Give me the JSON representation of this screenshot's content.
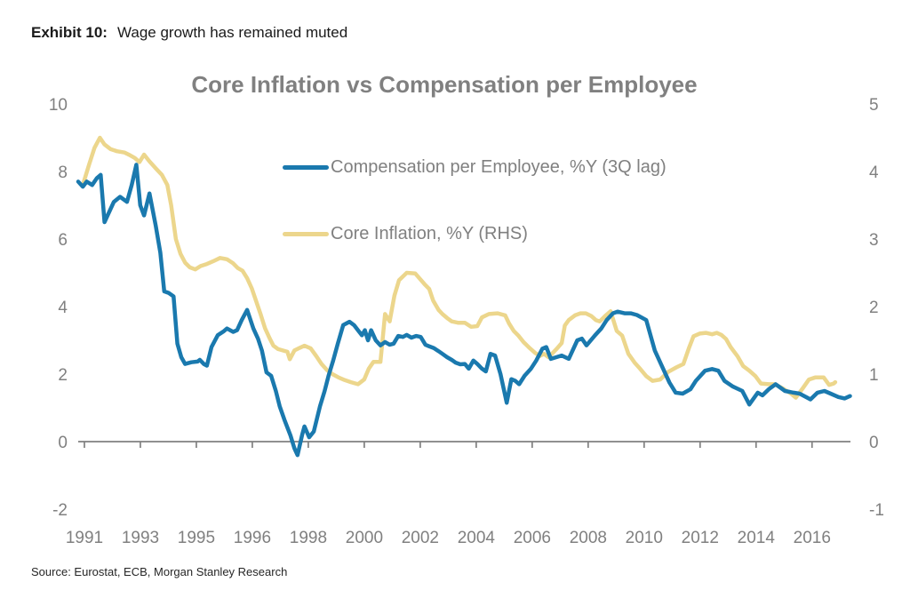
{
  "header": {
    "exhibit_label": "Exhibit 10:",
    "exhibit_title": "Wage growth has remained muted"
  },
  "footer": {
    "source": "Source: Eurostat, ECB, Morgan Stanley Research"
  },
  "chart_data": {
    "type": "line",
    "title": "Core Inflation vs Compensation per Employee",
    "grid": false,
    "legend_position": "inside-top",
    "colors": {
      "compensation": "#1a79ae",
      "core_inflation": "#ecd68c",
      "axis": "#808080",
      "title": "#808080"
    },
    "left_axis": {
      "ticks": [
        10,
        8,
        6,
        4,
        2,
        0,
        -2
      ],
      "range": [
        -2,
        10
      ]
    },
    "right_axis": {
      "ticks": [
        5,
        4,
        3,
        2,
        1,
        0,
        -1
      ],
      "range": [
        -1,
        5
      ]
    },
    "x_axis": {
      "labels": [
        "1991",
        "1993",
        "1995",
        "1996",
        "1998",
        "2000",
        "2002",
        "2004",
        "2006",
        "2008",
        "2010",
        "2012",
        "2014",
        "2016"
      ]
    },
    "series": [
      {
        "id": "compensation",
        "label": "Compensation per Employee, %Y (3Q lag)",
        "axis": "left",
        "color": "#1a79ae",
        "z": 2,
        "points": [
          [
            0.0,
            7.7
          ],
          [
            0.006,
            7.55
          ],
          [
            0.011,
            7.7
          ],
          [
            0.018,
            7.6
          ],
          [
            0.024,
            7.8
          ],
          [
            0.029,
            7.9
          ],
          [
            0.034,
            6.5
          ],
          [
            0.046,
            7.1
          ],
          [
            0.054,
            7.25
          ],
          [
            0.063,
            7.1
          ],
          [
            0.069,
            7.6
          ],
          [
            0.075,
            8.2
          ],
          [
            0.08,
            7.0
          ],
          [
            0.085,
            6.7
          ],
          [
            0.092,
            7.35
          ],
          [
            0.1,
            6.4
          ],
          [
            0.106,
            5.6
          ],
          [
            0.111,
            4.45
          ],
          [
            0.117,
            4.4
          ],
          [
            0.123,
            4.3
          ],
          [
            0.128,
            2.9
          ],
          [
            0.133,
            2.5
          ],
          [
            0.138,
            2.3
          ],
          [
            0.146,
            2.35
          ],
          [
            0.154,
            2.37
          ],
          [
            0.157,
            2.42
          ],
          [
            0.162,
            2.3
          ],
          [
            0.166,
            2.25
          ],
          [
            0.172,
            2.8
          ],
          [
            0.18,
            3.15
          ],
          [
            0.188,
            3.27
          ],
          [
            0.192,
            3.35
          ],
          [
            0.2,
            3.25
          ],
          [
            0.205,
            3.3
          ],
          [
            0.211,
            3.6
          ],
          [
            0.218,
            3.9
          ],
          [
            0.226,
            3.35
          ],
          [
            0.232,
            3.05
          ],
          [
            0.237,
            2.7
          ],
          [
            0.243,
            2.05
          ],
          [
            0.249,
            1.95
          ],
          [
            0.255,
            1.5
          ],
          [
            0.26,
            1.05
          ],
          [
            0.266,
            0.65
          ],
          [
            0.274,
            0.18
          ],
          [
            0.279,
            -0.2
          ],
          [
            0.283,
            -0.4
          ],
          [
            0.289,
            0.2
          ],
          [
            0.292,
            0.45
          ],
          [
            0.298,
            0.13
          ],
          [
            0.304,
            0.3
          ],
          [
            0.312,
            1.05
          ],
          [
            0.318,
            1.5
          ],
          [
            0.323,
            1.95
          ],
          [
            0.329,
            2.4
          ],
          [
            0.335,
            2.9
          ],
          [
            0.342,
            3.45
          ],
          [
            0.35,
            3.55
          ],
          [
            0.356,
            3.45
          ],
          [
            0.361,
            3.3
          ],
          [
            0.366,
            3.15
          ],
          [
            0.37,
            3.3
          ],
          [
            0.374,
            3.0
          ],
          [
            0.378,
            3.3
          ],
          [
            0.384,
            3.0
          ],
          [
            0.39,
            2.85
          ],
          [
            0.396,
            2.95
          ],
          [
            0.402,
            2.87
          ],
          [
            0.407,
            2.9
          ],
          [
            0.413,
            3.13
          ],
          [
            0.419,
            3.1
          ],
          [
            0.424,
            3.16
          ],
          [
            0.43,
            3.08
          ],
          [
            0.436,
            3.13
          ],
          [
            0.442,
            3.1
          ],
          [
            0.448,
            2.87
          ],
          [
            0.453,
            2.82
          ],
          [
            0.459,
            2.77
          ],
          [
            0.465,
            2.68
          ],
          [
            0.47,
            2.6
          ],
          [
            0.476,
            2.5
          ],
          [
            0.482,
            2.42
          ],
          [
            0.487,
            2.34
          ],
          [
            0.493,
            2.29
          ],
          [
            0.499,
            2.3
          ],
          [
            0.504,
            2.16
          ],
          [
            0.51,
            2.4
          ],
          [
            0.515,
            2.3
          ],
          [
            0.521,
            2.16
          ],
          [
            0.526,
            2.08
          ],
          [
            0.532,
            2.6
          ],
          [
            0.538,
            2.55
          ],
          [
            0.545,
            2.0
          ],
          [
            0.553,
            1.15
          ],
          [
            0.559,
            1.85
          ],
          [
            0.564,
            1.8
          ],
          [
            0.569,
            1.7
          ],
          [
            0.576,
            1.95
          ],
          [
            0.584,
            2.15
          ],
          [
            0.591,
            2.4
          ],
          [
            0.599,
            2.75
          ],
          [
            0.604,
            2.8
          ],
          [
            0.61,
            2.45
          ],
          [
            0.617,
            2.5
          ],
          [
            0.624,
            2.55
          ],
          [
            0.633,
            2.45
          ],
          [
            0.644,
            3.0
          ],
          [
            0.65,
            3.05
          ],
          [
            0.656,
            2.85
          ],
          [
            0.667,
            3.15
          ],
          [
            0.675,
            3.35
          ],
          [
            0.682,
            3.6
          ],
          [
            0.69,
            3.8
          ],
          [
            0.696,
            3.85
          ],
          [
            0.705,
            3.8
          ],
          [
            0.713,
            3.8
          ],
          [
            0.721,
            3.75
          ],
          [
            0.733,
            3.6
          ],
          [
            0.744,
            2.7
          ],
          [
            0.756,
            2.1
          ],
          [
            0.763,
            1.75
          ],
          [
            0.771,
            1.45
          ],
          [
            0.78,
            1.42
          ],
          [
            0.79,
            1.55
          ],
          [
            0.797,
            1.8
          ],
          [
            0.809,
            2.1
          ],
          [
            0.818,
            2.15
          ],
          [
            0.826,
            2.1
          ],
          [
            0.834,
            1.8
          ],
          [
            0.845,
            1.63
          ],
          [
            0.857,
            1.5
          ],
          [
            0.866,
            1.1
          ],
          [
            0.877,
            1.45
          ],
          [
            0.883,
            1.37
          ],
          [
            0.891,
            1.55
          ],
          [
            0.9,
            1.7
          ],
          [
            0.912,
            1.5
          ],
          [
            0.923,
            1.45
          ],
          [
            0.931,
            1.42
          ],
          [
            0.945,
            1.25
          ],
          [
            0.954,
            1.45
          ],
          [
            0.963,
            1.5
          ],
          [
            0.971,
            1.42
          ],
          [
            0.981,
            1.32
          ],
          [
            0.989,
            1.28
          ],
          [
            0.996,
            1.35
          ]
        ]
      },
      {
        "id": "core_inflation",
        "label": "Core Inflation, %Y (RHS)",
        "axis": "right",
        "color": "#ecd68c",
        "z": 1,
        "points": [
          [
            0.006,
            3.8
          ],
          [
            0.014,
            4.1
          ],
          [
            0.021,
            4.35
          ],
          [
            0.028,
            4.5
          ],
          [
            0.034,
            4.4
          ],
          [
            0.042,
            4.33
          ],
          [
            0.05,
            4.3
          ],
          [
            0.06,
            4.28
          ],
          [
            0.067,
            4.24
          ],
          [
            0.073,
            4.2
          ],
          [
            0.079,
            4.14
          ],
          [
            0.085,
            4.25
          ],
          [
            0.092,
            4.15
          ],
          [
            0.099,
            4.06
          ],
          [
            0.108,
            3.95
          ],
          [
            0.115,
            3.8
          ],
          [
            0.12,
            3.5
          ],
          [
            0.126,
            3.0
          ],
          [
            0.132,
            2.78
          ],
          [
            0.138,
            2.65
          ],
          [
            0.144,
            2.58
          ],
          [
            0.151,
            2.55
          ],
          [
            0.158,
            2.6
          ],
          [
            0.166,
            2.63
          ],
          [
            0.174,
            2.67
          ],
          [
            0.183,
            2.72
          ],
          [
            0.192,
            2.7
          ],
          [
            0.2,
            2.64
          ],
          [
            0.206,
            2.57
          ],
          [
            0.212,
            2.53
          ],
          [
            0.218,
            2.42
          ],
          [
            0.224,
            2.27
          ],
          [
            0.229,
            2.1
          ],
          [
            0.235,
            1.9
          ],
          [
            0.241,
            1.68
          ],
          [
            0.247,
            1.53
          ],
          [
            0.252,
            1.42
          ],
          [
            0.258,
            1.37
          ],
          [
            0.264,
            1.35
          ],
          [
            0.27,
            1.33
          ],
          [
            0.273,
            1.22
          ],
          [
            0.279,
            1.35
          ],
          [
            0.286,
            1.39
          ],
          [
            0.292,
            1.42
          ],
          [
            0.3,
            1.38
          ],
          [
            0.307,
            1.27
          ],
          [
            0.314,
            1.15
          ],
          [
            0.321,
            1.06
          ],
          [
            0.328,
            1.0
          ],
          [
            0.336,
            0.95
          ],
          [
            0.344,
            0.91
          ],
          [
            0.352,
            0.88
          ],
          [
            0.361,
            0.85
          ],
          [
            0.369,
            0.92
          ],
          [
            0.375,
            1.08
          ],
          [
            0.381,
            1.18
          ],
          [
            0.39,
            1.18
          ],
          [
            0.396,
            1.89
          ],
          [
            0.402,
            1.78
          ],
          [
            0.408,
            2.16
          ],
          [
            0.414,
            2.39
          ],
          [
            0.424,
            2.5
          ],
          [
            0.435,
            2.49
          ],
          [
            0.447,
            2.33
          ],
          [
            0.453,
            2.26
          ],
          [
            0.458,
            2.09
          ],
          [
            0.465,
            1.95
          ],
          [
            0.47,
            1.89
          ],
          [
            0.476,
            1.83
          ],
          [
            0.482,
            1.78
          ],
          [
            0.49,
            1.76
          ],
          [
            0.499,
            1.76
          ],
          [
            0.507,
            1.7
          ],
          [
            0.515,
            1.71
          ],
          [
            0.521,
            1.84
          ],
          [
            0.53,
            1.89
          ],
          [
            0.541,
            1.9
          ],
          [
            0.551,
            1.87
          ],
          [
            0.556,
            1.75
          ],
          [
            0.562,
            1.64
          ],
          [
            0.568,
            1.57
          ],
          [
            0.575,
            1.47
          ],
          [
            0.583,
            1.38
          ],
          [
            0.59,
            1.31
          ],
          [
            0.596,
            1.27
          ],
          [
            0.601,
            1.3
          ],
          [
            0.607,
            1.25
          ],
          [
            0.613,
            1.32
          ],
          [
            0.618,
            1.38
          ],
          [
            0.624,
            1.46
          ],
          [
            0.628,
            1.72
          ],
          [
            0.633,
            1.8
          ],
          [
            0.641,
            1.87
          ],
          [
            0.648,
            1.9
          ],
          [
            0.655,
            1.9
          ],
          [
            0.662,
            1.86
          ],
          [
            0.668,
            1.8
          ],
          [
            0.673,
            1.78
          ],
          [
            0.68,
            1.86
          ],
          [
            0.687,
            1.93
          ],
          [
            0.695,
            1.64
          ],
          [
            0.702,
            1.57
          ],
          [
            0.71,
            1.3
          ],
          [
            0.718,
            1.17
          ],
          [
            0.725,
            1.08
          ],
          [
            0.733,
            0.97
          ],
          [
            0.741,
            0.9
          ],
          [
            0.751,
            0.92
          ],
          [
            0.761,
            1.03
          ],
          [
            0.772,
            1.1
          ],
          [
            0.781,
            1.15
          ],
          [
            0.788,
            1.38
          ],
          [
            0.794,
            1.56
          ],
          [
            0.802,
            1.6
          ],
          [
            0.81,
            1.61
          ],
          [
            0.818,
            1.59
          ],
          [
            0.824,
            1.61
          ],
          [
            0.83,
            1.58
          ],
          [
            0.836,
            1.52
          ],
          [
            0.842,
            1.4
          ],
          [
            0.851,
            1.26
          ],
          [
            0.858,
            1.12
          ],
          [
            0.866,
            1.05
          ],
          [
            0.874,
            0.97
          ],
          [
            0.881,
            0.86
          ],
          [
            0.891,
            0.85
          ],
          [
            0.899,
            0.85
          ],
          [
            0.909,
            0.79
          ],
          [
            0.92,
            0.71
          ],
          [
            0.926,
            0.65
          ],
          [
            0.935,
            0.79
          ],
          [
            0.943,
            0.92
          ],
          [
            0.951,
            0.95
          ],
          [
            0.962,
            0.95
          ],
          [
            0.969,
            0.84
          ],
          [
            0.975,
            0.86
          ],
          [
            0.977,
            0.88
          ]
        ]
      }
    ]
  }
}
